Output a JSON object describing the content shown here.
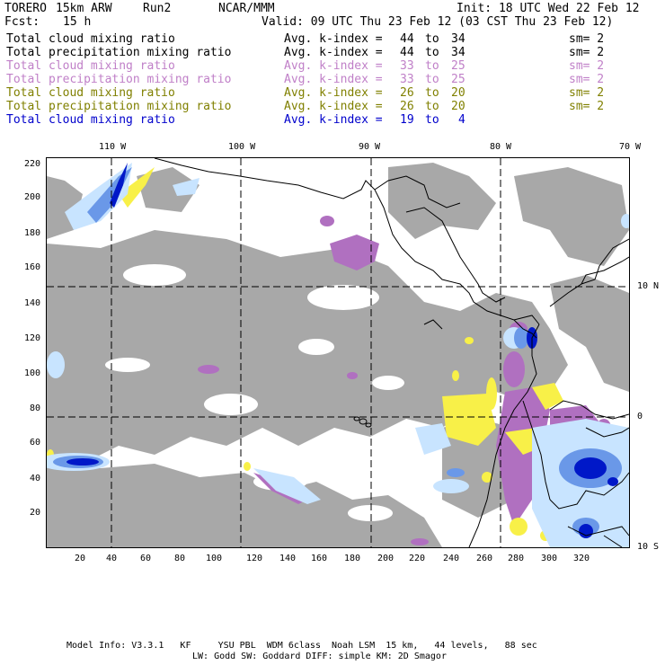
{
  "header": {
    "model": "TORERO",
    "resolution": "15km ARW",
    "run": "Run2",
    "org": "NCAR/MMM",
    "init": "Init: 18 UTC Wed 22 Feb 12",
    "fcst_label": "Fcst:",
    "fcst_value": "15 h",
    "valid": "Valid: 09 UTC Thu 23 Feb 12 (03 CST Thu 23 Feb 12)"
  },
  "legend": [
    {
      "field": "Total cloud mixing ratio",
      "kindex": "Avg. k-index =",
      "from": "44",
      "to": "34",
      "sm": "sm= 2",
      "color": "#000000"
    },
    {
      "field": "Total precipitation mixing ratio",
      "kindex": "Avg. k-index =",
      "from": "44",
      "to": "34",
      "sm": "sm= 2",
      "color": "#000000"
    },
    {
      "field": "Total cloud mixing ratio",
      "kindex": "Avg. k-index =",
      "from": "33",
      "to": "25",
      "sm": "sm= 2",
      "color": "#c080c8"
    },
    {
      "field": "Total precipitation mixing ratio",
      "kindex": "Avg. k-index =",
      "from": "33",
      "to": "25",
      "sm": "sm= 2",
      "color": "#c080c8"
    },
    {
      "field": "Total cloud mixing ratio",
      "kindex": "Avg. k-index =",
      "from": "26",
      "to": "20",
      "sm": "sm= 2",
      "color": "#808000"
    },
    {
      "field": "Total precipitation mixing ratio",
      "kindex": "Avg. k-index =",
      "from": "26",
      "to": "20",
      "sm": "sm= 2",
      "color": "#808000"
    },
    {
      "field": "Total cloud mixing ratio",
      "kindex": "Avg. k-index =",
      "from": "19",
      "to": "4",
      "sm": "",
      "color": "#0000cc"
    }
  ],
  "map": {
    "lon_labels": [
      "110 W",
      "100 W",
      "90 W",
      "80 W",
      "70 W"
    ],
    "lat_labels": [
      "10 N",
      "0",
      "10 S"
    ],
    "y_ticks": [
      "220",
      "200",
      "180",
      "160",
      "140",
      "120",
      "100",
      "80",
      "60",
      "40",
      "20"
    ],
    "x_ticks": [
      "20",
      "40",
      "60",
      "80",
      "100",
      "120",
      "140",
      "160",
      "180",
      "200",
      "220",
      "240",
      "260",
      "280",
      "300",
      "320"
    ],
    "colors": {
      "gray": "#a8a8a8",
      "purple": "#b070c0",
      "yellow": "#f8f048",
      "blue_light": "#c8e4ff",
      "blue_mid": "#6a98e8",
      "blue_dark": "#0018c8"
    }
  },
  "footer": {
    "line1": "Model Info: V3.3.1   KF     YSU PBL  WDM 6class  Noah LSM  15 km,   44 levels,   88 sec",
    "line2": "LW: Godd SW: Goddard DIFF: simple KM: 2D Smagor"
  }
}
